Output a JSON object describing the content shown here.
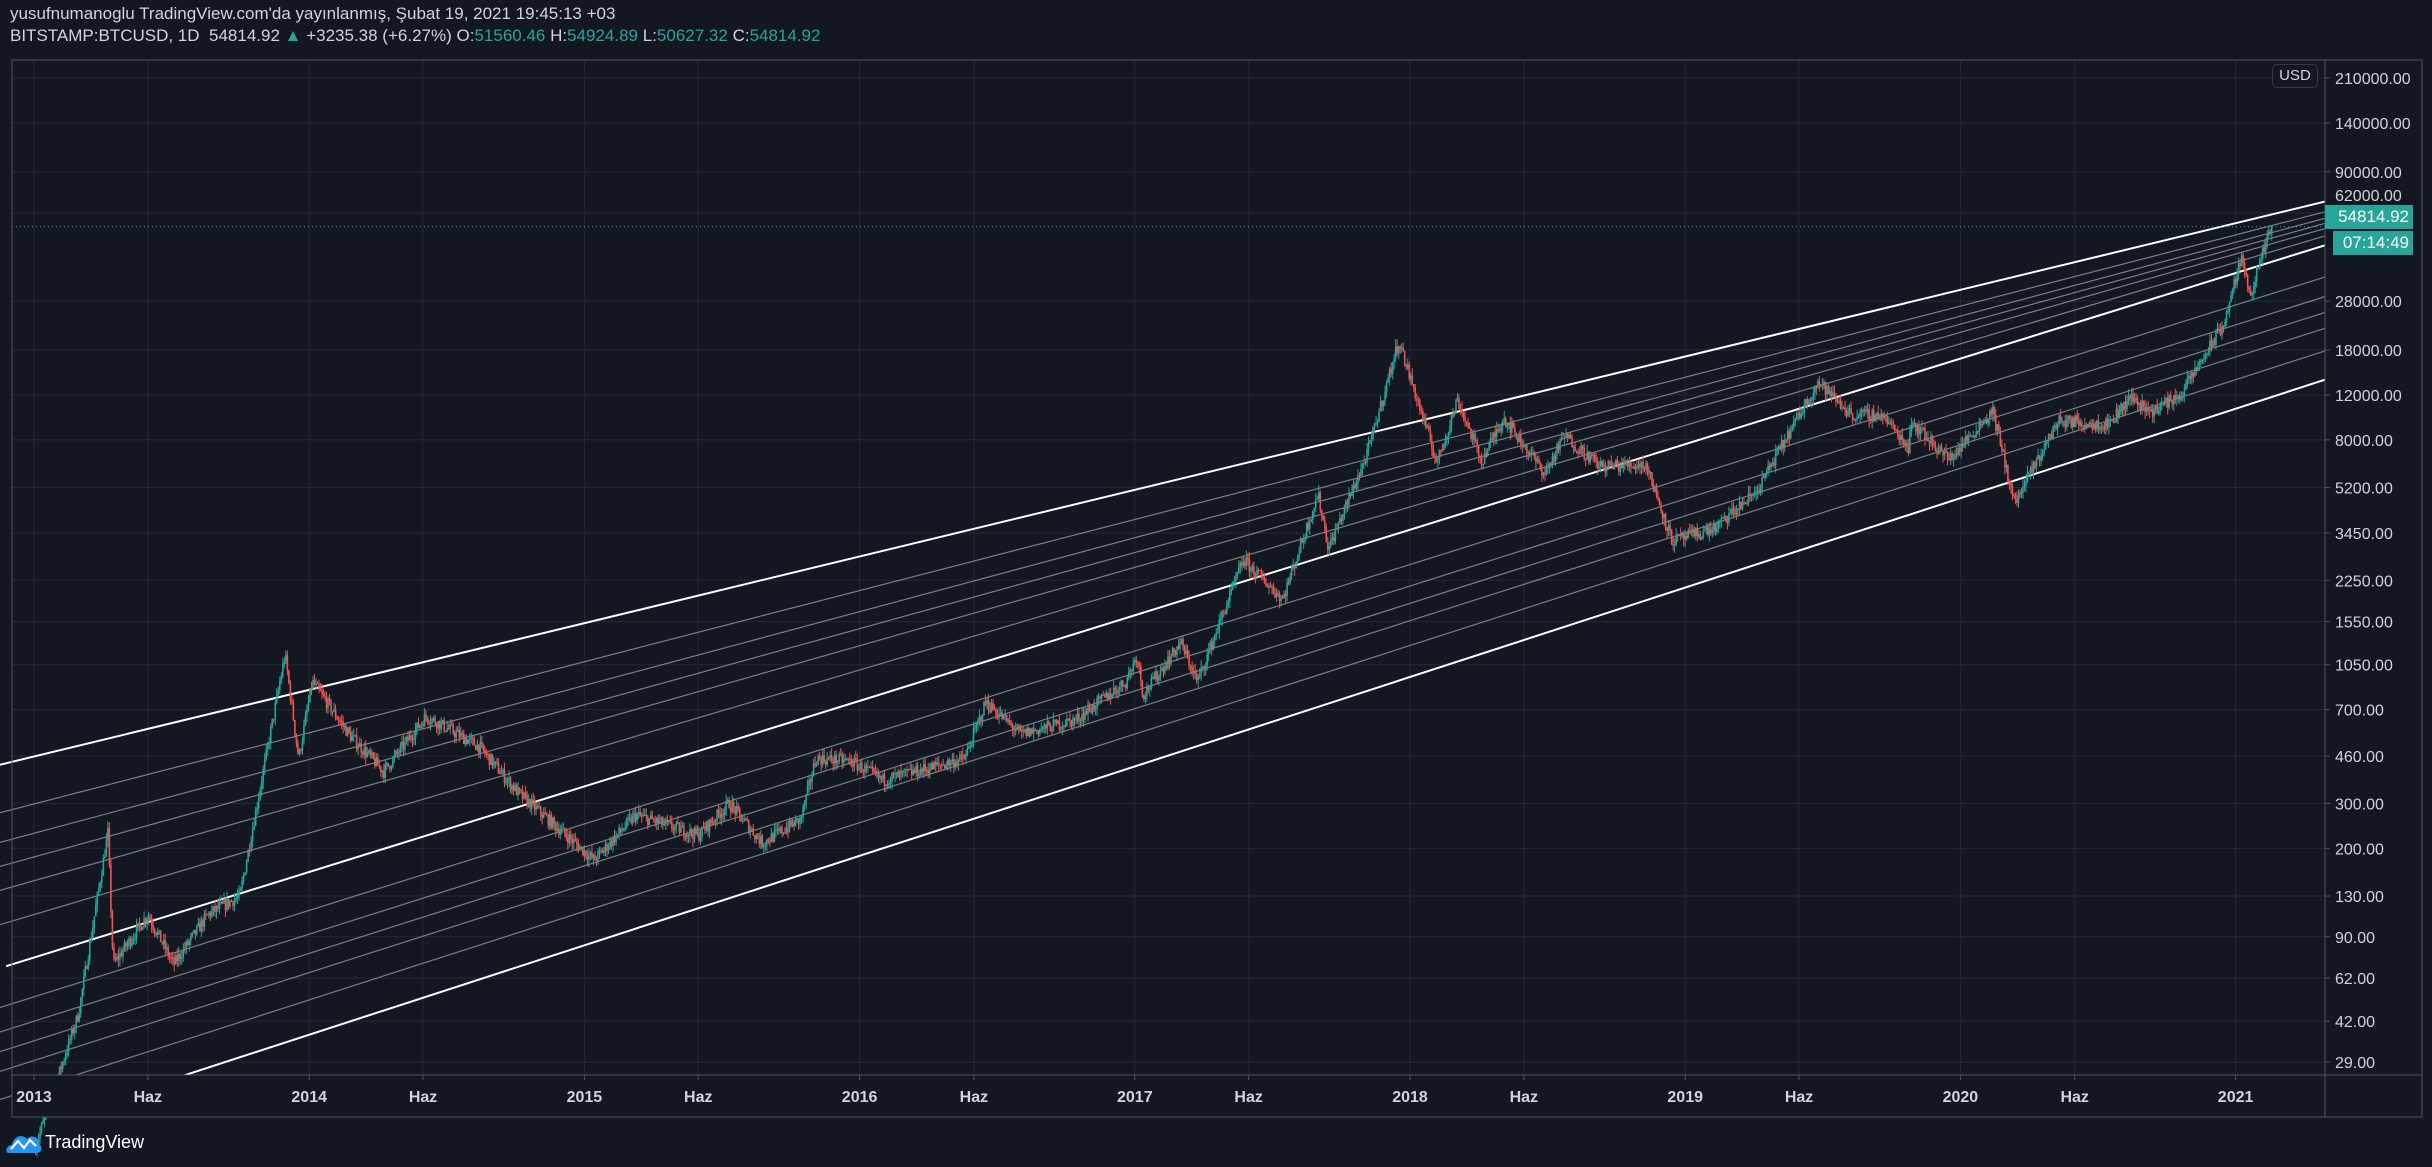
{
  "header": {
    "published_line": "yusufnumanoglu TradingView.com'da yayınlanmış, Şubat 19, 2021 19:45:13 +03",
    "symbol": "BITSTAMP:BTCUSD, 1D",
    "last": "54814.92",
    "change": "+3235.38 (+6.27%)",
    "o_label": "O:",
    "o": "51560.46",
    "h_label": "H:",
    "h": "54924.89",
    "l_label": "L:",
    "l": "50627.32",
    "c_label": "C:",
    "c": "54814.92",
    "up_arrow_icon": "triangle-up"
  },
  "axis": {
    "currency": "USD",
    "last_price_label": "54814.92",
    "countdown": "07:14:49"
  },
  "footer": {
    "brand": "TradingView",
    "logo_icon": "tradingview-cloud-logo"
  },
  "colors": {
    "background": "#131722",
    "grid": "#242833",
    "up": "#26a69a",
    "down": "#ef5350",
    "trendline": "#ffffff",
    "fib_line": "#9598a1"
  },
  "chart_data": {
    "type": "candlestick",
    "symbol": "BITSTAMP:BTCUSD",
    "interval": "1D",
    "y_scale": "log",
    "grid": true,
    "ylim": [
      25,
      210000
    ],
    "xlim": [
      "2012-11-20",
      "2021-08-20"
    ],
    "y_ticks": [
      210000,
      140000,
      90000,
      62000,
      28000,
      18000,
      12000,
      8000,
      5200,
      3450,
      2250,
      1550,
      1050,
      700,
      460,
      300,
      200,
      130,
      90,
      62,
      42,
      29
    ],
    "y_tick_labels": [
      "210000.00",
      "140000.00",
      "90000.00",
      "62000.00",
      "28000.00",
      "18000.00",
      "12000.00",
      "8000.00",
      "5200.00",
      "3450.00",
      "2250.00",
      "1550.00",
      "1050.00",
      "700.00",
      "460.00",
      "300.00",
      "200.00",
      "130.00",
      "90.00",
      "62.00",
      "42.00",
      "29.00"
    ],
    "x_ticks": [
      {
        "date": "2013-01-01",
        "label": "2013"
      },
      {
        "date": "2013-06-01",
        "label": "Haz"
      },
      {
        "date": "2014-01-01",
        "label": "2014"
      },
      {
        "date": "2014-06-01",
        "label": "Haz"
      },
      {
        "date": "2015-01-01",
        "label": "2015"
      },
      {
        "date": "2015-06-01",
        "label": "Haz"
      },
      {
        "date": "2016-01-01",
        "label": "2016"
      },
      {
        "date": "2016-06-01",
        "label": "Haz"
      },
      {
        "date": "2017-01-01",
        "label": "2017"
      },
      {
        "date": "2017-06-01",
        "label": "Haz"
      },
      {
        "date": "2018-01-01",
        "label": "2018"
      },
      {
        "date": "2018-06-01",
        "label": "Haz"
      },
      {
        "date": "2019-01-01",
        "label": "2019"
      },
      {
        "date": "2019-06-01",
        "label": "Haz"
      },
      {
        "date": "2020-01-01",
        "label": "2020"
      },
      {
        "date": "2020-06-01",
        "label": "Haz"
      },
      {
        "date": "2021-01-01",
        "label": "2021"
      }
    ],
    "price_path": [
      [
        "2013-01-01",
        13
      ],
      [
        "2013-03-01",
        45
      ],
      [
        "2013-04-09",
        230
      ],
      [
        "2013-04-16",
        70
      ],
      [
        "2013-06-01",
        110
      ],
      [
        "2013-07-05",
        70
      ],
      [
        "2013-08-20",
        110
      ],
      [
        "2013-10-01",
        130
      ],
      [
        "2013-11-30",
        1150
      ],
      [
        "2013-12-18",
        450
      ],
      [
        "2014-01-05",
        900
      ],
      [
        "2014-02-25",
        550
      ],
      [
        "2014-04-10",
        400
      ],
      [
        "2014-06-05",
        660
      ],
      [
        "2014-08-15",
        500
      ],
      [
        "2014-10-05",
        330
      ],
      [
        "2015-01-14",
        180
      ],
      [
        "2015-03-10",
        270
      ],
      [
        "2015-06-01",
        225
      ],
      [
        "2015-07-12",
        300
      ],
      [
        "2015-08-25",
        210
      ],
      [
        "2015-10-15",
        260
      ],
      [
        "2015-11-04",
        450
      ],
      [
        "2015-12-20",
        440
      ],
      [
        "2016-02-01",
        370
      ],
      [
        "2016-05-20",
        450
      ],
      [
        "2016-06-17",
        750
      ],
      [
        "2016-08-02",
        560
      ],
      [
        "2016-10-15",
        640
      ],
      [
        "2016-12-20",
        900
      ],
      [
        "2017-01-04",
        1150
      ],
      [
        "2017-01-12",
        800
      ],
      [
        "2017-03-03",
        1280
      ],
      [
        "2017-03-25",
        900
      ],
      [
        "2017-05-25",
        2700
      ],
      [
        "2017-07-16",
        1900
      ],
      [
        "2017-09-01",
        4900
      ],
      [
        "2017-09-15",
        3000
      ],
      [
        "2017-11-05",
        7000
      ],
      [
        "2017-12-17",
        19500
      ],
      [
        "2018-02-06",
        6500
      ],
      [
        "2018-03-05",
        11500
      ],
      [
        "2018-04-06",
        6600
      ],
      [
        "2018-05-05",
        9800
      ],
      [
        "2018-06-29",
        5900
      ],
      [
        "2018-07-25",
        8300
      ],
      [
        "2018-09-10",
        6300
      ],
      [
        "2018-11-10",
        6400
      ],
      [
        "2018-12-15",
        3200
      ],
      [
        "2019-02-10",
        3600
      ],
      [
        "2019-04-05",
        5000
      ],
      [
        "2019-06-26",
        13500
      ],
      [
        "2019-08-10",
        10000
      ],
      [
        "2019-09-20",
        10000
      ],
      [
        "2019-10-24",
        7500
      ],
      [
        "2019-10-27",
        9500
      ],
      [
        "2019-12-17",
        6700
      ],
      [
        "2020-02-13",
        10400
      ],
      [
        "2020-03-13",
        4500
      ],
      [
        "2020-05-10",
        9500
      ],
      [
        "2020-07-15",
        9200
      ],
      [
        "2020-08-15",
        11800
      ],
      [
        "2020-09-10",
        10300
      ],
      [
        "2020-10-20",
        12000
      ],
      [
        "2020-12-17",
        23000
      ],
      [
        "2021-01-08",
        41000
      ],
      [
        "2021-01-22",
        30000
      ],
      [
        "2021-02-08",
        45000
      ],
      [
        "2021-02-19",
        54814.92
      ]
    ],
    "trend_lines": [
      {
        "role": "upper",
        "from": [
          "2012-11-16",
          425
        ],
        "to": [
          "2021-08-20",
          82800
        ]
      },
      {
        "role": "middle",
        "from": [
          "2012-11-25",
          69
        ],
        "to": [
          "2021-04-30",
          46400
        ]
      },
      {
        "role": "lower",
        "from": [
          "2013-07-20",
          25.8
        ],
        "to": [
          "2021-08-20",
          17660
        ]
      }
    ],
    "fib_levels": [
      0.236,
      0.382,
      0.5,
      0.618,
      0.786
    ],
    "last_price": 54814.92
  }
}
